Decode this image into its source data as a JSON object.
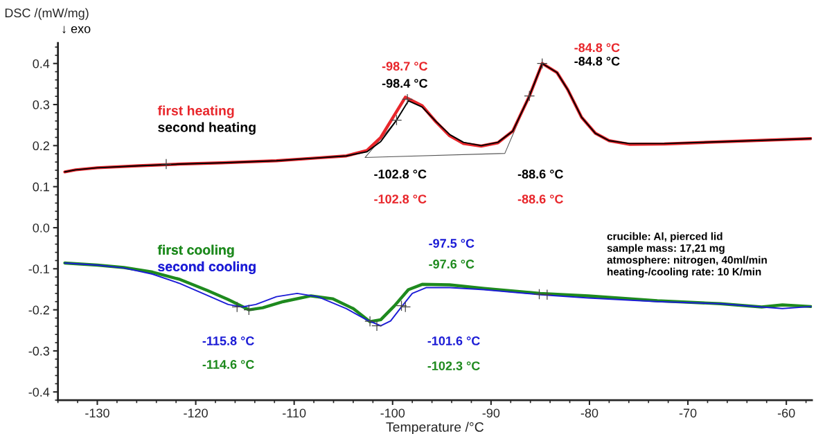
{
  "chart_data": {
    "type": "line",
    "xlabel": "Temperature /°C",
    "ylabel": "DSC /(mW/mg)",
    "xlim": [
      -134,
      -57.4
    ],
    "ylim": [
      -0.42,
      0.45
    ],
    "xticks": [
      {
        "value": -130,
        "label": "-130"
      },
      {
        "value": -120,
        "label": "-120"
      },
      {
        "value": -110,
        "label": "-110"
      },
      {
        "value": -100,
        "label": "-100"
      },
      {
        "value": -90,
        "label": "-90"
      },
      {
        "value": -80,
        "label": "-80"
      },
      {
        "value": -70,
        "label": "-70"
      },
      {
        "value": -60,
        "label": "-60"
      }
    ],
    "yticks": [
      {
        "value": -0.4,
        "label": "-0.4"
      },
      {
        "value": -0.3,
        "label": "-0.3"
      },
      {
        "value": -0.2,
        "label": "-0.2"
      },
      {
        "value": -0.1,
        "label": "-0.1"
      },
      {
        "value": 0,
        "label": "0.0"
      },
      {
        "value": 0.1,
        "label": "0.1"
      },
      {
        "value": 0.2,
        "label": "0.2"
      },
      {
        "value": 0.3,
        "label": "0.3"
      },
      {
        "value": 0.4,
        "label": "0.4"
      }
    ],
    "grid": false,
    "legend": "left",
    "series": [
      {
        "name": "first heating",
        "color": "#e8262b",
        "x": [
          -133.3,
          -132.2,
          -130,
          -125.8,
          -121.6,
          -117.4,
          -111.8,
          -107.6,
          -104.7,
          -102.6,
          -101.2,
          -99.8,
          -98.7,
          -97.0,
          -95.6,
          -94.2,
          -92.8,
          -91.0,
          -89.3,
          -87.8,
          -86.1,
          -84.8,
          -83.3,
          -82.2,
          -80.8,
          -79.4,
          -78.0,
          -75.9,
          -72.4,
          -66.0,
          -57.5
        ],
        "values": [
          0.136,
          0.141,
          0.146,
          0.151,
          0.155,
          0.158,
          0.163,
          0.17,
          0.175,
          0.188,
          0.22,
          0.275,
          0.318,
          0.297,
          0.258,
          0.224,
          0.205,
          0.199,
          0.207,
          0.235,
          0.321,
          0.4,
          0.378,
          0.336,
          0.269,
          0.23,
          0.212,
          0.203,
          0.204,
          0.21,
          0.217
        ]
      },
      {
        "name": "second heating",
        "color": "#000000",
        "x": [
          -133.3,
          -132.2,
          -130,
          -125.8,
          -121.6,
          -117.4,
          -111.8,
          -107.6,
          -104.7,
          -102.6,
          -101.2,
          -99.6,
          -98.4,
          -97.0,
          -95.6,
          -94.2,
          -92.8,
          -91.0,
          -89.3,
          -87.8,
          -86.1,
          -84.8,
          -83.3,
          -82.2,
          -80.8,
          -79.4,
          -78.0,
          -75.9,
          -72.4,
          -66.0,
          -57.5
        ],
        "values": [
          0.136,
          0.141,
          0.146,
          0.151,
          0.155,
          0.158,
          0.163,
          0.17,
          0.175,
          0.185,
          0.21,
          0.262,
          0.309,
          0.294,
          0.259,
          0.227,
          0.208,
          0.2,
          0.208,
          0.235,
          0.321,
          0.4,
          0.378,
          0.336,
          0.269,
          0.23,
          0.212,
          0.205,
          0.205,
          0.21,
          0.217
        ]
      },
      {
        "name": "first cooling",
        "color": "#1e8a1e",
        "x": [
          -133.3,
          -130,
          -127.3,
          -124.4,
          -121.6,
          -118.8,
          -116.7,
          -114.6,
          -113.2,
          -111.1,
          -108.3,
          -106.1,
          -104.0,
          -102.3,
          -101.2,
          -99.8,
          -98.4,
          -97.0,
          -94.2,
          -90.7,
          -85.0,
          -80.1,
          -73.1,
          -66.7,
          -62.5,
          -60.4,
          -57.5
        ],
        "values": [
          -0.086,
          -0.091,
          -0.097,
          -0.108,
          -0.126,
          -0.153,
          -0.175,
          -0.2,
          -0.195,
          -0.18,
          -0.166,
          -0.173,
          -0.197,
          -0.229,
          -0.224,
          -0.19,
          -0.151,
          -0.138,
          -0.139,
          -0.148,
          -0.16,
          -0.166,
          -0.178,
          -0.185,
          -0.193,
          -0.188,
          -0.192
        ]
      },
      {
        "name": "second cooling",
        "color": "#1c1cd6",
        "x": [
          -133.3,
          -130,
          -127.3,
          -124.4,
          -121.6,
          -118.8,
          -116.7,
          -115.3,
          -113.9,
          -111.8,
          -109.7,
          -107.6,
          -104.7,
          -102.6,
          -101.2,
          -100.2,
          -99.1,
          -98.0,
          -96.6,
          -94.2,
          -90.7,
          -85.0,
          -80.1,
          -73.1,
          -66.7,
          -62.5,
          -60.4,
          -57.5
        ],
        "values": [
          -0.086,
          -0.091,
          -0.098,
          -0.113,
          -0.136,
          -0.165,
          -0.187,
          -0.193,
          -0.187,
          -0.168,
          -0.16,
          -0.168,
          -0.197,
          -0.225,
          -0.239,
          -0.227,
          -0.193,
          -0.16,
          -0.146,
          -0.146,
          -0.151,
          -0.163,
          -0.171,
          -0.18,
          -0.185,
          -0.193,
          -0.197,
          -0.192
        ]
      },
      {
        "type": "line",
        "color": "#555555",
        "x": [
          -99.6,
          -102.8,
          -88.6,
          -86.1
        ],
        "values": [
          0.262,
          0.171,
          0.181,
          0.321
        ]
      },
      {
        "type": "scatter",
        "color": "#444444",
        "marker": "cross",
        "x": [
          -123,
          -99.6,
          -98.5,
          -86.1,
          -84.8,
          -115.8,
          -114.6,
          -102.3,
          -101.6,
          -99.1,
          -98.7,
          -85.1,
          -84.3
        ],
        "values": [
          0.155,
          0.262,
          0.313,
          0.321,
          0.4,
          -0.193,
          -0.2,
          -0.228,
          -0.239,
          -0.19,
          -0.193,
          -0.162,
          -0.163
        ]
      }
    ],
    "annotations": [
      "-98.7 °C",
      "-98.4 °C",
      "-84.8 °C",
      "-84.8 °C",
      "-102.8 °C",
      "-102.8 °C",
      "-88.6 °C",
      "-88.6 °C",
      "-97.5 °C",
      "-97.6 °C",
      "-115.8 °C",
      "-114.6 °C",
      "-101.6 °C",
      "-102.3 °C",
      "↓ exo",
      "crucible: Al, pierced lid\nsample mass: 17,21 mg\natmosphere: nitrogen, 40ml/min\nheating-/cooling rate: 10 K/min"
    ]
  }
}
